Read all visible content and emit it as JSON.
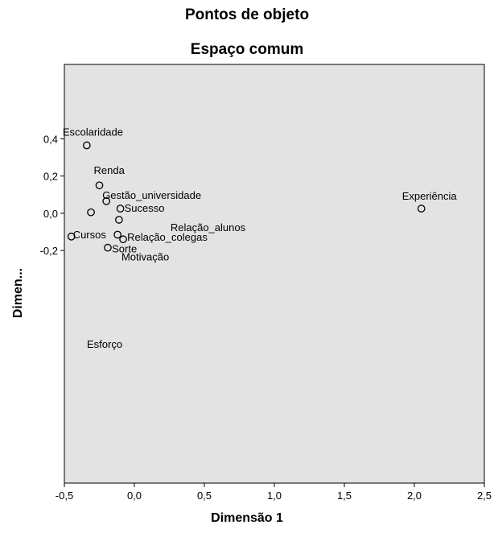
{
  "chart_data": {
    "type": "scatter",
    "title": "Pontos de objeto",
    "subtitle": "Espaço comum",
    "xlabel": "Dimensão 1",
    "ylabel": "Dimen...",
    "xlim": [
      -0.5,
      2.5
    ],
    "ylim": [
      -1.45,
      0.8
    ],
    "xticks": [
      "-0,5",
      "0,0",
      "0,5",
      "1,0",
      "1,5",
      "2,0",
      "2,5"
    ],
    "yticks": [
      "0,4",
      "0,2",
      "0,0",
      "-0,2"
    ],
    "grid": false,
    "plot_bg": "#e3e3e3",
    "points": [
      {
        "label": "Escolaridade",
        "x": -0.34,
        "y": 0.365
      },
      {
        "label": "Renda",
        "x": -0.25,
        "y": 0.15
      },
      {
        "label": "Gestão_universidade",
        "x": -0.2,
        "y": 0.065
      },
      {
        "label": "",
        "x": -0.31,
        "y": 0.005
      },
      {
        "label": "Sucesso",
        "x": -0.1,
        "y": 0.025
      },
      {
        "label": "Relação_alunos",
        "x": -0.11,
        "y": -0.035
      },
      {
        "label": "Cursos",
        "x": -0.45,
        "y": -0.125
      },
      {
        "label": "Sorte",
        "x": -0.12,
        "y": -0.115
      },
      {
        "label": "Relação_colegas",
        "x": -0.08,
        "y": -0.14
      },
      {
        "label": "Motivação",
        "x": -0.19,
        "y": -0.185
      },
      {
        "label": "Esforço",
        "x": null,
        "y": null
      },
      {
        "label": "Experiência",
        "x": 2.05,
        "y": 0.025
      }
    ]
  }
}
